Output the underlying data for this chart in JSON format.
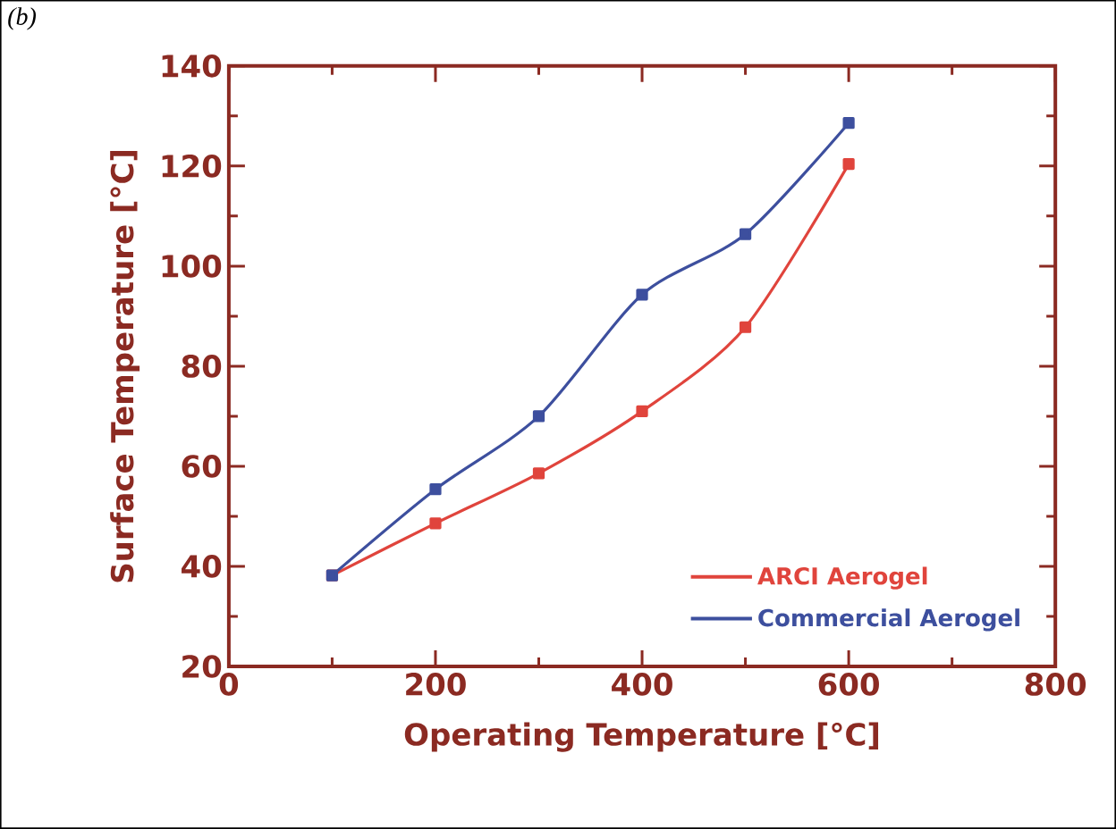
{
  "chart_data": {
    "type": "line",
    "xlabel": "Operating Temperature [°C]",
    "ylabel": "Surface Temperature [°C]",
    "annotations": [
      "*(b)*"
    ],
    "x": [
      100,
      200,
      300,
      400,
      500,
      600
    ],
    "series": [
      {
        "name": "ARCI Aerogel",
        "color": "#e0443c",
        "values": [
          38.2,
          48.6,
          58.6,
          71,
          87.8,
          120.4
        ]
      },
      {
        "name": "Commercial Aerogel",
        "color": "#3d4f9e",
        "values": [
          38.2,
          55.4,
          70,
          94.3,
          106.4,
          128.6
        ]
      }
    ],
    "xlim": [
      0,
      800
    ],
    "ylim": [
      20,
      140
    ],
    "xticks": [
      0,
      200,
      400,
      600,
      800
    ],
    "yticks": [
      20,
      40,
      60,
      80,
      100,
      120,
      140
    ],
    "legend": "bottom right",
    "marker": "square",
    "line_style": "solid",
    "grid": false
  }
}
